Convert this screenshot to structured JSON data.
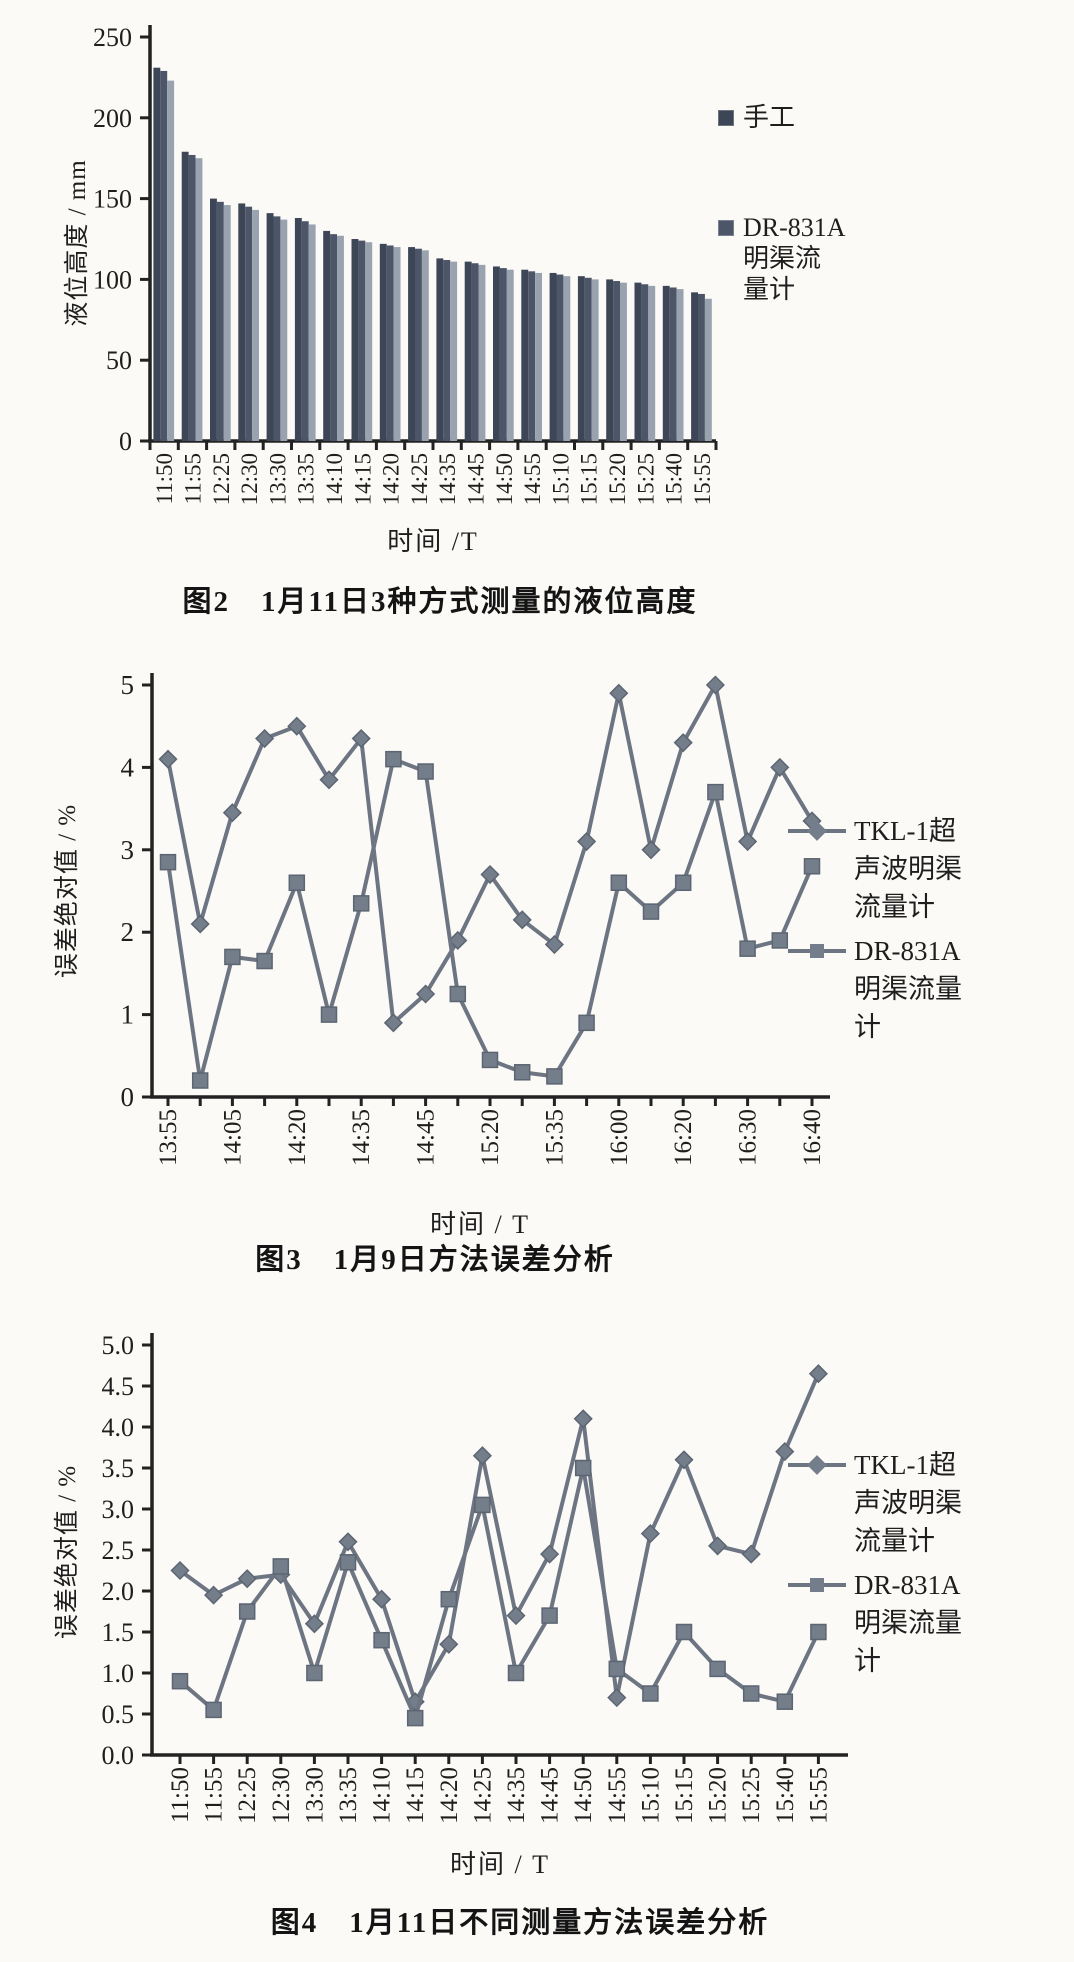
{
  "colors": {
    "paper": "#fbfaf7",
    "ink": "#1e1e1e",
    "axis": "#222222",
    "bar_series": [
      "#3c4656",
      "#4d5668",
      "#99a2af"
    ],
    "line": "#6d7582",
    "marker_fill": "#747d8a",
    "marker_edge": "#5c6572"
  },
  "chart_data": [
    {
      "id": "fig2",
      "type": "bar",
      "caption": "图2　1月11日3种方式测量的液位高度",
      "xlabel": "时间 /T",
      "ylabel": "液位高度 / mm",
      "ylim": [
        0,
        250
      ],
      "y_tick_labels": [
        "0",
        "50",
        "100",
        "150",
        "200",
        "250"
      ],
      "grid": false,
      "legend_position": "right",
      "categories": [
        "11:50",
        "11:55",
        "12:25",
        "12:30",
        "13:30",
        "13:35",
        "14:10",
        "14:15",
        "14:20",
        "14:25",
        "14:35",
        "14:45",
        "14:50",
        "14:55",
        "15:10",
        "15:15",
        "15:20",
        "15:25",
        "15:40",
        "15:55"
      ],
      "series": [
        {
          "name": "手工",
          "values": [
            231,
            179,
            150,
            147,
            141,
            138,
            130,
            125,
            122,
            120,
            113,
            111,
            108,
            106,
            104,
            102,
            100,
            98,
            96,
            92
          ]
        },
        {
          "name": "DR-831A明渠流量计",
          "values": [
            229,
            177,
            148,
            145,
            139,
            136,
            128,
            124,
            121,
            119,
            112,
            110,
            107,
            105,
            103,
            101,
            99,
            97,
            95,
            91
          ]
        },
        {
          "name": "",
          "values": [
            223,
            175,
            146,
            143,
            137,
            134,
            127,
            123,
            120,
            118,
            111,
            109,
            106,
            104,
            102,
            100,
            98,
            96,
            94,
            88
          ]
        }
      ],
      "legend": [
        {
          "label": "手工",
          "marker": "bar-square"
        },
        {
          "label": "DR-831A\n明渠流\n量计",
          "marker": "bar-square"
        }
      ]
    },
    {
      "id": "fig3",
      "type": "line",
      "caption": "图3　1月9日方法误差分析",
      "xlabel": "时间 / T",
      "ylabel": "误差绝对值 / %",
      "ylim": [
        0,
        5
      ],
      "y_tick_labels": [
        "0",
        "1",
        "2",
        "3",
        "4",
        "5"
      ],
      "grid": false,
      "legend_position": "right",
      "x_labels": [
        "13:55",
        "",
        "14:05",
        "",
        "14:20",
        "",
        "14:35",
        "",
        "14:45",
        "",
        "15:20",
        "",
        "15:35",
        "",
        "16:00",
        "",
        "16:20",
        "",
        "16:30",
        "",
        "16:40"
      ],
      "series": [
        {
          "name": "TKL-1超声波明渠流量计",
          "marker": "diamond",
          "values": [
            4.1,
            2.1,
            3.45,
            4.35,
            4.5,
            3.85,
            4.35,
            0.9,
            1.25,
            1.9,
            2.7,
            2.15,
            1.85,
            3.1,
            4.9,
            3.0,
            4.3,
            5.0,
            3.1,
            4.0,
            3.35
          ]
        },
        {
          "name": "DR-831A明渠流量计",
          "marker": "square",
          "values": [
            2.85,
            0.2,
            1.7,
            1.65,
            2.6,
            1.0,
            2.35,
            4.1,
            3.95,
            1.25,
            0.45,
            0.3,
            0.25,
            0.9,
            2.6,
            2.25,
            2.6,
            3.7,
            1.8,
            1.9,
            2.8
          ]
        }
      ],
      "legend": [
        {
          "label": "TKL-1超\n声波明渠\n流量计",
          "marker": "diamond"
        },
        {
          "label": "DR-831A\n明渠流量\n计",
          "marker": "square"
        }
      ]
    },
    {
      "id": "fig4",
      "type": "line",
      "caption": "图4　1月11日不同测量方法误差分析",
      "xlabel": "时间 / T",
      "ylabel": "误差绝对值 / %",
      "ylim": [
        0,
        5
      ],
      "y_tick_labels": [
        "0.0",
        "0.5",
        "1.0",
        "1.5",
        "2.0",
        "2.5",
        "3.0",
        "3.5",
        "4.0",
        "4.5",
        "5.0"
      ],
      "grid": false,
      "legend_position": "right",
      "x_labels": [
        "11:50",
        "11:55",
        "12:25",
        "12:30",
        "13:30",
        "13:35",
        "14:10",
        "14:15",
        "14:20",
        "14:25",
        "14:35",
        "14:45",
        "14:50",
        "14:55",
        "15:10",
        "15:15",
        "15:20",
        "15:25",
        "15:40",
        "15:55"
      ],
      "series": [
        {
          "name": "TKL-1超声波明渠流量计",
          "marker": "diamond",
          "values": [
            2.25,
            1.95,
            2.15,
            2.2,
            1.6,
            2.6,
            1.9,
            0.65,
            1.35,
            3.65,
            1.7,
            2.45,
            4.1,
            0.7,
            2.7,
            3.6,
            2.55,
            2.45,
            3.7,
            4.65
          ]
        },
        {
          "name": "DR-831A明渠流量计",
          "marker": "square",
          "values": [
            0.9,
            0.55,
            1.75,
            2.3,
            1.0,
            2.35,
            1.4,
            0.45,
            1.9,
            3.05,
            1.0,
            1.7,
            3.5,
            1.05,
            0.75,
            1.5,
            1.05,
            0.75,
            0.65,
            1.5
          ]
        }
      ],
      "legend": [
        {
          "label": "TKL-1超\n声波明渠\n流量计",
          "marker": "diamond"
        },
        {
          "label": "DR-831A\n明渠流量\n计",
          "marker": "square"
        }
      ]
    }
  ]
}
